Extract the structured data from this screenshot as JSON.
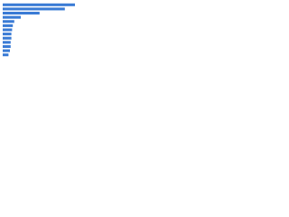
{
  "chart_data": {
    "type": "bar",
    "orientation": "horizontal",
    "categories": [
      null,
      null,
      null,
      null,
      null,
      null,
      null,
      null,
      null,
      null,
      null,
      null,
      null
    ],
    "values": [
      100,
      86,
      51,
      25,
      16,
      14,
      13,
      12,
      12,
      11,
      11,
      10,
      8
    ],
    "color": "#3a7bd5",
    "xlim": [
      0,
      100
    ]
  }
}
